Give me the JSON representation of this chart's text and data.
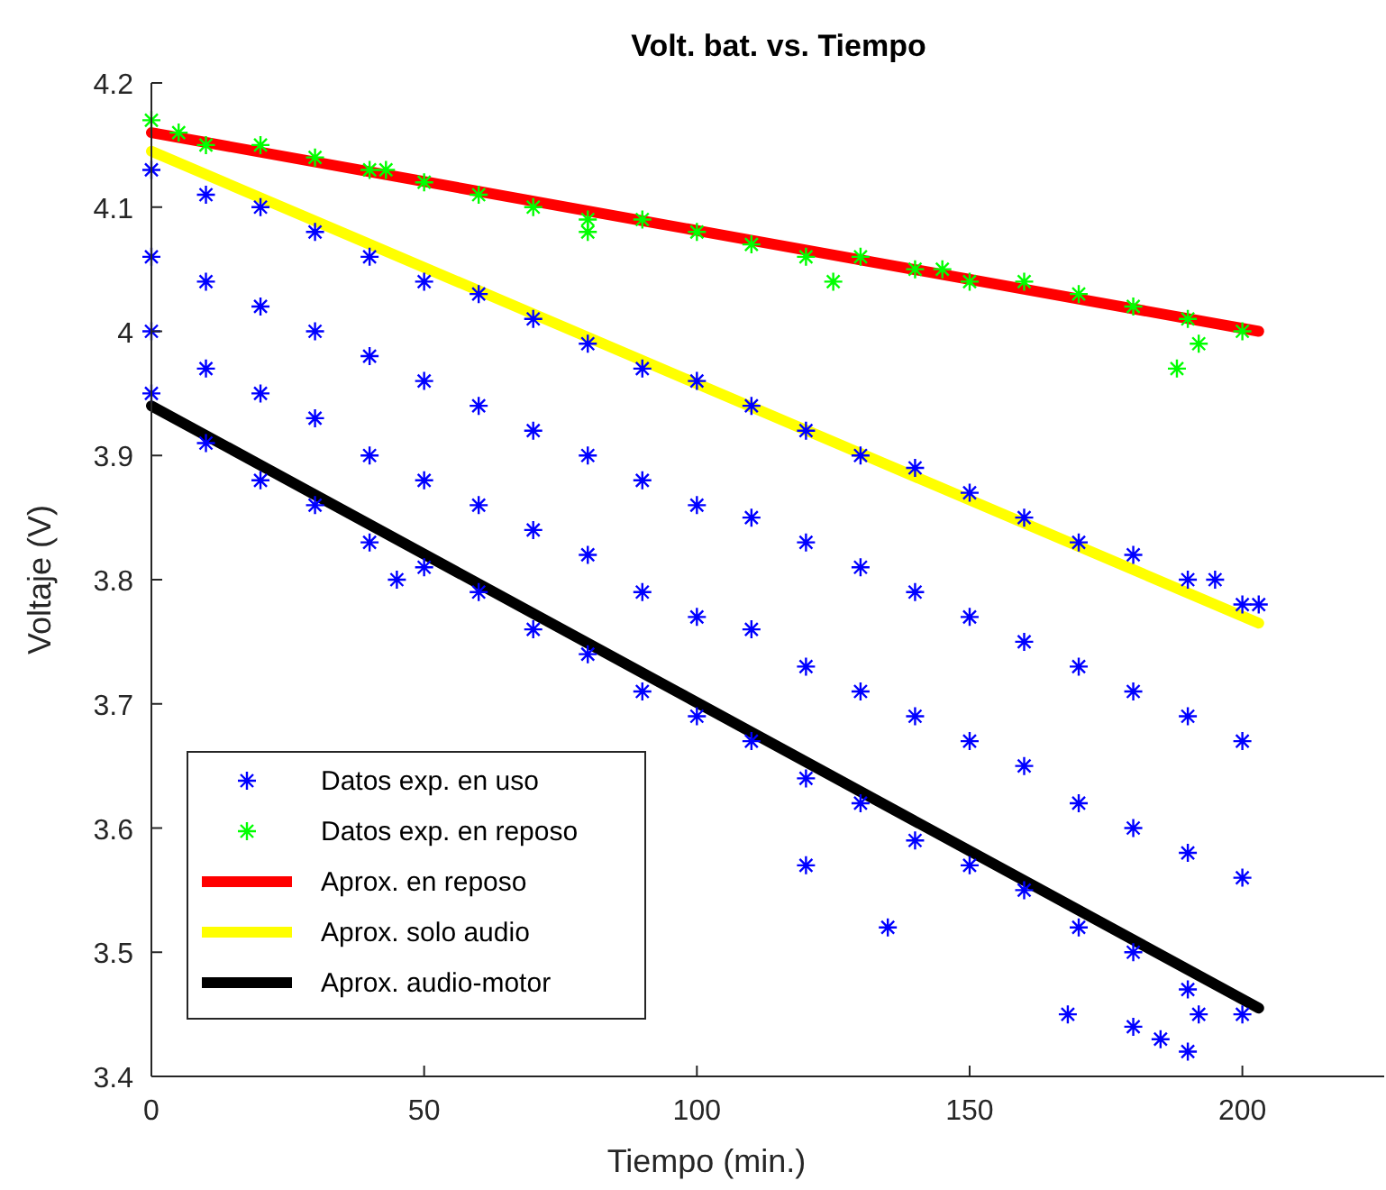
{
  "chart_data": {
    "type": "scatter",
    "title": "Volt. bat. vs. Tiempo",
    "xlabel": "Tiempo (min.)",
    "ylabel": "Voltaje (V)",
    "xlim": [
      0,
      226
    ],
    "ylim": [
      3.4,
      4.2
    ],
    "xticks": [
      0,
      50,
      100,
      150,
      200
    ],
    "yticks": [
      3.4,
      3.5,
      3.6,
      3.7,
      3.8,
      3.9,
      4,
      4.1,
      4.2
    ],
    "grid": false,
    "legend": "bottom left",
    "series": [
      {
        "name": "Datos exp. en uso",
        "marker": "cross",
        "color": "#0000ff",
        "x": [
          0,
          0,
          0,
          0,
          10,
          10,
          10,
          10,
          20,
          20,
          20,
          20,
          30,
          30,
          30,
          30,
          40,
          40,
          40,
          40,
          50,
          50,
          50,
          50,
          60,
          60,
          60,
          60,
          70,
          70,
          70,
          70,
          80,
          80,
          80,
          80,
          90,
          90,
          90,
          90,
          100,
          100,
          100,
          100,
          110,
          110,
          110,
          110,
          120,
          120,
          120,
          120,
          130,
          130,
          130,
          130,
          140,
          140,
          140,
          140,
          150,
          150,
          150,
          150,
          160,
          160,
          160,
          160,
          170,
          170,
          170,
          170,
          180,
          180,
          180,
          180,
          190,
          190,
          190,
          190,
          200,
          200,
          200,
          200,
          135,
          168,
          180,
          185,
          190,
          192,
          195,
          203,
          45,
          120
        ],
        "values": [
          4.13,
          4.06,
          4.0,
          3.95,
          4.11,
          4.04,
          3.97,
          3.91,
          4.1,
          4.02,
          3.95,
          3.88,
          4.08,
          4.0,
          3.93,
          3.86,
          4.06,
          3.98,
          3.9,
          3.83,
          4.04,
          3.96,
          3.88,
          3.81,
          4.03,
          3.94,
          3.86,
          3.79,
          4.01,
          3.92,
          3.84,
          3.76,
          3.99,
          3.9,
          3.82,
          3.74,
          3.97,
          3.88,
          3.79,
          3.71,
          3.96,
          3.86,
          3.77,
          3.69,
          3.94,
          3.85,
          3.76,
          3.67,
          3.92,
          3.83,
          3.73,
          3.64,
          3.9,
          3.81,
          3.71,
          3.62,
          3.89,
          3.79,
          3.69,
          3.59,
          3.87,
          3.77,
          3.67,
          3.57,
          3.85,
          3.75,
          3.65,
          3.55,
          3.83,
          3.73,
          3.62,
          3.52,
          3.82,
          3.71,
          3.6,
          3.5,
          3.8,
          3.69,
          3.58,
          3.47,
          3.78,
          3.67,
          3.56,
          3.45,
          3.52,
          3.45,
          3.44,
          3.43,
          3.42,
          3.45,
          3.8,
          3.78,
          3.8,
          3.57
        ]
      },
      {
        "name": "Datos exp. en reposo",
        "marker": "cross",
        "color": "#00ff00",
        "x": [
          0,
          10,
          20,
          30,
          40,
          50,
          60,
          70,
          80,
          90,
          100,
          110,
          120,
          130,
          140,
          150,
          160,
          170,
          180,
          190,
          200,
          43,
          80,
          125,
          188,
          192,
          145,
          5
        ],
        "values": [
          4.17,
          4.15,
          4.15,
          4.14,
          4.13,
          4.12,
          4.11,
          4.1,
          4.09,
          4.09,
          4.08,
          4.07,
          4.06,
          4.06,
          4.05,
          4.04,
          4.04,
          4.03,
          4.02,
          4.01,
          4.0,
          4.13,
          4.08,
          4.04,
          3.97,
          3.99,
          4.05,
          4.16
        ]
      },
      {
        "name": "Aprox. en reposo",
        "type": "line",
        "marker": "none",
        "line_style": "solid",
        "color": "#ff0000",
        "x": [
          0,
          203
        ],
        "values": [
          4.16,
          4.0
        ]
      },
      {
        "name": "Aprox. solo audio",
        "type": "line",
        "marker": "none",
        "line_style": "solid",
        "color": "#ffff00",
        "x": [
          0,
          203
        ],
        "values": [
          4.145,
          3.765
        ]
      },
      {
        "name": "Aprox. audio-motor",
        "type": "line",
        "marker": "none",
        "line_style": "solid",
        "color": "#000000",
        "x": [
          0,
          203
        ],
        "values": [
          3.94,
          3.455
        ]
      }
    ]
  }
}
